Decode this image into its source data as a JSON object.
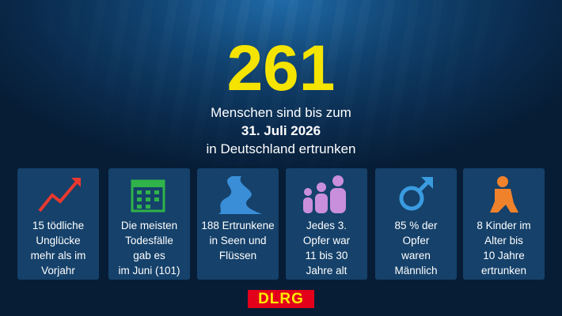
{
  "headline": {
    "number": "261",
    "lines": [
      "Menschen sind bis zum",
      "31. Juli 2026",
      "in Deutschland ertrunken"
    ]
  },
  "cards": [
    {
      "lines": [
        "15 tödliche",
        "Unglücke",
        "mehr als im",
        "Vorjahr"
      ]
    },
    {
      "lines": [
        "Die meisten",
        "Todesfälle",
        "gab es",
        "im Juni (101)"
      ]
    },
    {
      "lines": [
        "188 Ertrunkene",
        "in Seen und",
        "Flüssen"
      ]
    },
    {
      "lines": [
        "Jedes 3.",
        "Opfer war",
        "11 bis 30",
        "Jahre alt"
      ]
    },
    {
      "lines": [
        "85 % der",
        "Opfer",
        "waren",
        "Männlich"
      ]
    },
    {
      "lines": [
        "8 Kinder im",
        "Alter bis",
        "10 Jahre",
        "ertrunken"
      ]
    }
  ],
  "logo": "DLRG"
}
